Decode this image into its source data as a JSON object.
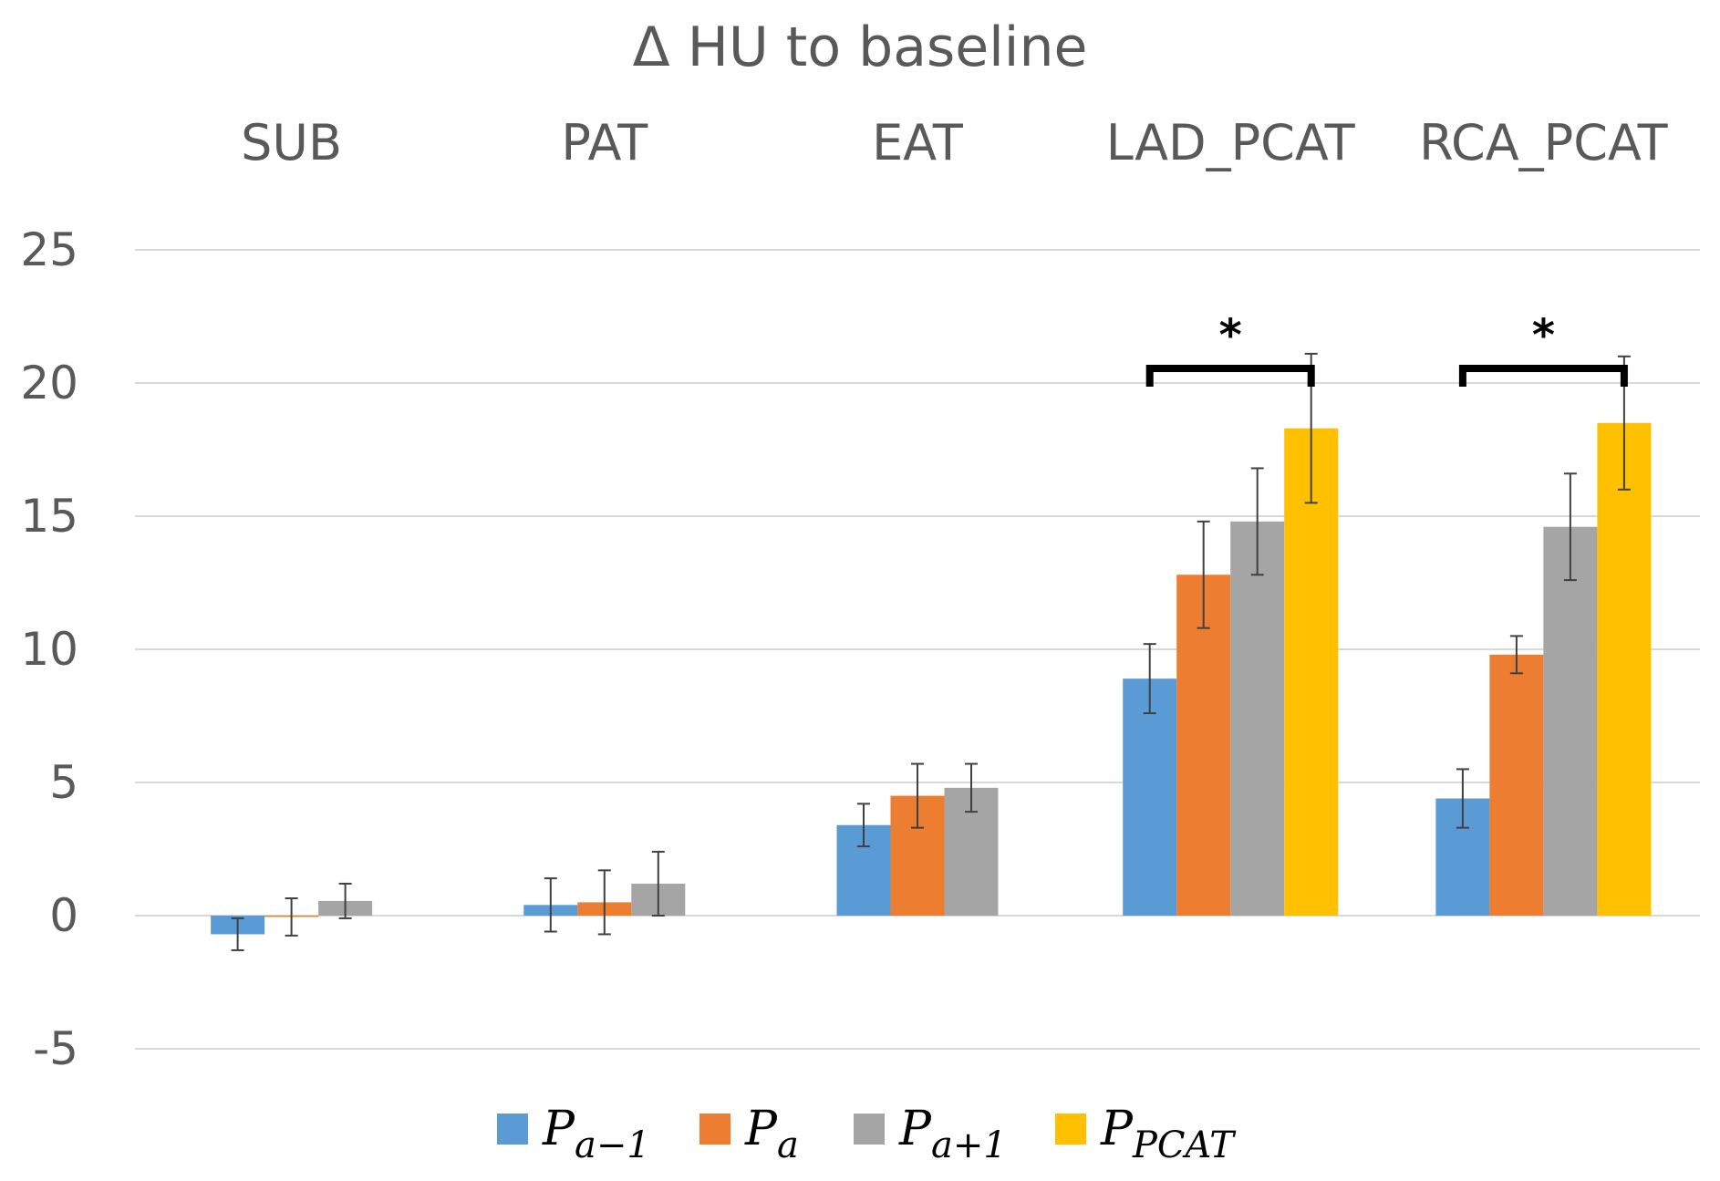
{
  "chart_data": {
    "type": "bar",
    "title": "Δ HU to baseline",
    "categories": [
      "SUB",
      "PAT",
      "EAT",
      "LAD_PCAT",
      "RCA_PCAT"
    ],
    "ylim": [
      -5,
      25
    ],
    "yticks": [
      -5,
      0,
      5,
      10,
      15,
      20,
      25
    ],
    "grid": true,
    "legend_position": "bottom",
    "series": [
      {
        "name": "P_{a−1}",
        "label_main": "P",
        "label_sub": "a−1",
        "color": "#5b9bd5",
        "values": [
          -0.7,
          0.4,
          3.4,
          8.9,
          4.4
        ],
        "errors": [
          0.6,
          1.0,
          0.8,
          1.3,
          1.1
        ]
      },
      {
        "name": "P_a",
        "label_main": "P",
        "label_sub": "a",
        "color": "#ed7d31",
        "values": [
          -0.05,
          0.5,
          4.5,
          12.8,
          9.8
        ],
        "errors": [
          0.7,
          1.2,
          1.2,
          2.0,
          0.7
        ]
      },
      {
        "name": "P_{a+1}",
        "label_main": "P",
        "label_sub": "a+1",
        "color": "#a5a5a5",
        "values": [
          0.55,
          1.2,
          4.8,
          14.8,
          14.6
        ],
        "errors": [
          0.65,
          1.2,
          0.9,
          2.0,
          2.0
        ]
      },
      {
        "name": "P_{PCAT}",
        "label_main": "P",
        "label_sub": "PCAT",
        "color": "#ffc000",
        "values": [
          null,
          null,
          null,
          18.3,
          18.5
        ],
        "errors": [
          null,
          null,
          null,
          2.8,
          2.5
        ]
      }
    ],
    "significance": [
      {
        "category": "LAD_PCAT",
        "from_series": 0,
        "to_series": 3,
        "label": "*"
      },
      {
        "category": "RCA_PCAT",
        "from_series": 0,
        "to_series": 3,
        "label": "*"
      }
    ]
  }
}
